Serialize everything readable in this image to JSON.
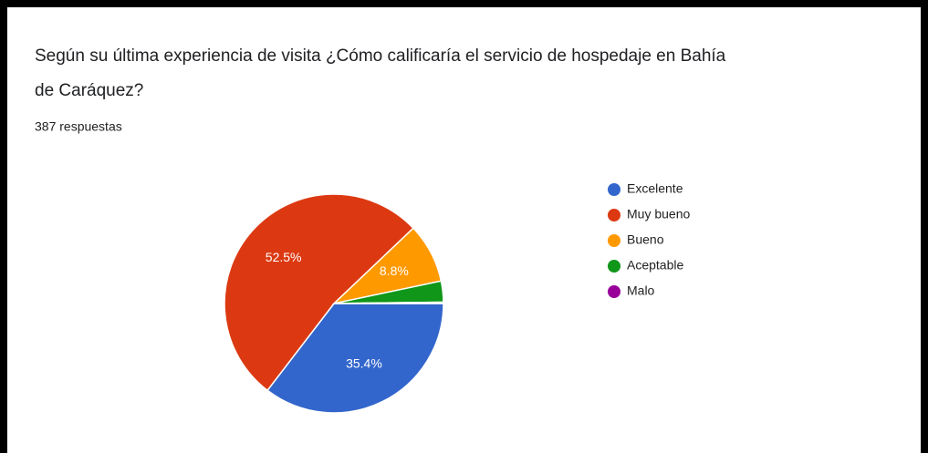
{
  "chart_data": {
    "type": "pie",
    "title": "Según su última experiencia de visita ¿Cómo calificaría el servicio de hospedaje en Bahía de Caráquez?",
    "subtitle": "387 respuestas",
    "categories": [
      "Excelente",
      "Muy bueno",
      "Bueno",
      "Aceptable",
      "Malo"
    ],
    "values": [
      35.4,
      52.5,
      8.8,
      3.1,
      0.2
    ],
    "value_labels": [
      "35.4%",
      "52.5%",
      "8.8%",
      null,
      null
    ],
    "colors": [
      "#3366cc",
      "#dc3912",
      "#ff9900",
      "#109618",
      "#990099"
    ],
    "legend": "right"
  }
}
